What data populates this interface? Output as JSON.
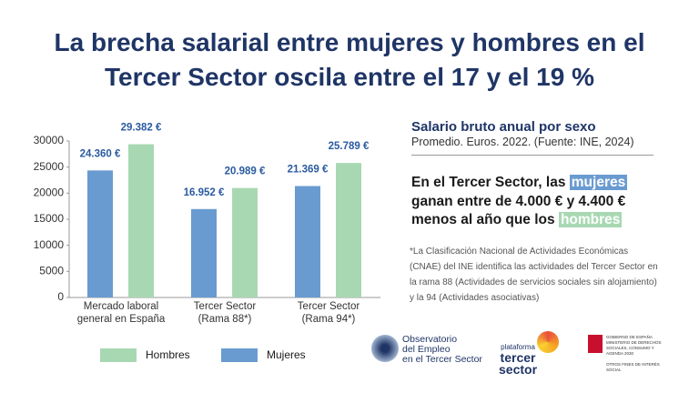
{
  "title": [
    "La brecha salarial entre mujeres y hombres en el",
    "Tercer Sector oscila entre el 17 y el 19 %"
  ],
  "chart_data": {
    "type": "bar",
    "categories": [
      "Mercado laboral\ngeneral en España",
      "Tercer Sector\n(Rama 88*)",
      "Tercer Sector\n(Rama 94*)"
    ],
    "series": [
      {
        "name": "Mujeres",
        "color": "#6a9bd0",
        "values": [
          24360,
          16952,
          21369
        ],
        "value_labels": [
          "24.360 €",
          "16.952 €",
          "21.369 €"
        ]
      },
      {
        "name": "Hombres",
        "color": "#a8d8b2",
        "values": [
          29382,
          20989,
          25789
        ],
        "value_labels": [
          "29.382 €",
          "20.989 €",
          "25.789 €"
        ]
      }
    ],
    "ylim": [
      0,
      30000
    ],
    "yticks": [
      0,
      5000,
      10000,
      15000,
      20000,
      25000,
      30000
    ],
    "grid": false
  },
  "panel": {
    "heading": "Salario bruto anual por sexo",
    "subheading": "Promedio. Euros. 2022. (Fuente: INE, 2024)",
    "statement": [
      "En el Tercer Sector, las",
      "mujeres",
      "ganan entre de 4.000 € y 4.400 €",
      "menos al año que los",
      "hombres"
    ],
    "footnote": "*La Clasificación Nacional de Actividades Económicas (CNAE) del INE identifica las actividades del Tercer Sector en la rama 88 (Actividades de servicios sociales sin alojamiento) y la 94 (Actividades asociativas)"
  },
  "logos": {
    "observatorio": [
      "Observatorio",
      "del Empleo",
      "en el Tercer Sector"
    ],
    "plataforma": [
      "plataforma",
      "tercer",
      "sector"
    ],
    "gobierno": [
      "GOBIERNO DE ESPAÑA",
      "MINISTERIO DE DERECHOS SOCIALES, CONSUMO Y AGENDA 2030",
      "OTROS FINES DE INTERÉS SOCIAL"
    ]
  }
}
